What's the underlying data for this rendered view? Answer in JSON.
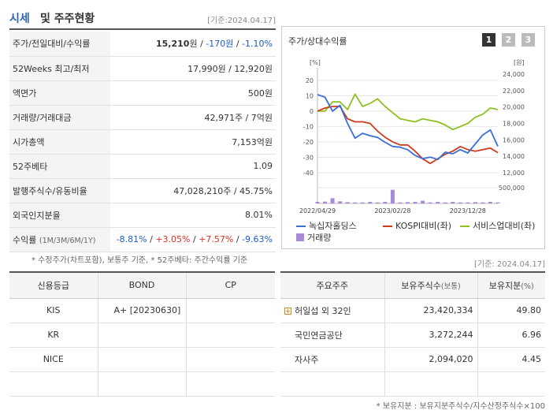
{
  "header": {
    "title_main": "시세",
    "title_rest": "및 주주현황",
    "date": "[기준:2024.04.17]"
  },
  "price_rows": [
    {
      "label": "주가/전일대비/수익률",
      "price": "15,210",
      "unit": "원",
      "sep": " / ",
      "change": "-170원",
      "rate": "-1.10%"
    },
    {
      "label": "52Weeks 최고/최저",
      "value": "17,990원 / 12,920원"
    },
    {
      "label": "액면가",
      "value": "500원"
    },
    {
      "label": "거래량/거래대금",
      "value": "42,971주 / 7억원"
    },
    {
      "label": "시가총액",
      "value": "7,153억원"
    },
    {
      "label": "52주베타",
      "value": "1.09"
    },
    {
      "label": "발행주식수/유동비율",
      "value": "47,028,210주 / 45.75%"
    },
    {
      "label": "외국인지분율",
      "value": "8.01%"
    },
    {
      "label": "수익률",
      "sublabel": "(1M/3M/6M/1Y)",
      "r1": "-8.81%",
      "r2": "+3.05%",
      "r3": "+7.57%",
      "r4": "-9.63%"
    }
  ],
  "note1": "* 수정주가(차트포함), 보통주 기준, * 52주베타: 주간수익률 기준",
  "chart_panel": {
    "title": "주가/상대수익률",
    "pages": [
      "1",
      "2",
      "3"
    ],
    "left_unit": "[%]",
    "right_unit": "[원]",
    "volume_tick": "500,000",
    "x_labels": [
      "2022/04/29",
      "2023/02/28",
      "2023/12/28"
    ],
    "legend": {
      "stock": "녹십자홀딩스",
      "kospi": "KOSPI대비(좌)",
      "service": "서비스업대비(좌)",
      "volume": "거래량"
    },
    "colors": {
      "stock": "#3a6fd6",
      "kospi": "#d23a1c",
      "service": "#8fc021",
      "volume": "#a78bd8"
    }
  },
  "chart_data": {
    "type": "line",
    "x": [
      "2022/04/29",
      "2022/05/29",
      "2022/06/29",
      "2022/07/29",
      "2022/08/29",
      "2022/09/29",
      "2022/10/29",
      "2022/11/29",
      "2022/12/29",
      "2023/01/29",
      "2023/02/28",
      "2023/03/28",
      "2023/04/28",
      "2023/05/28",
      "2023/06/28",
      "2023/07/28",
      "2023/08/28",
      "2023/09/28",
      "2023/10/28",
      "2023/11/28",
      "2023/12/28",
      "2024/01/28",
      "2024/02/28",
      "2024/03/28",
      "2024/04/17"
    ],
    "left_axis": {
      "ticks": [
        20,
        10,
        0,
        -10,
        -20,
        -30,
        -40
      ],
      "ylim": [
        -40,
        24
      ]
    },
    "right_axis": {
      "ticks": [
        "24,000",
        "22,000",
        "20,000",
        "18,000",
        "16,000",
        "14,000",
        "12,000"
      ],
      "ylim": [
        12000,
        24000
      ]
    },
    "series": [
      {
        "name": "녹십자홀딩스",
        "axis": "right",
        "values": [
          21500,
          21200,
          19500,
          20200,
          18000,
          16200,
          16800,
          16500,
          16300,
          15700,
          15200,
          15100,
          14800,
          14100,
          13700,
          13900,
          13600,
          14500,
          14300,
          14800,
          14400,
          15500,
          16600,
          17200,
          15210
        ]
      },
      {
        "name": "KOSPI대비(좌)",
        "axis": "left",
        "values": [
          0,
          2,
          3,
          3,
          -5,
          -7,
          -7,
          -8,
          -13,
          -17,
          -20,
          -22,
          -22,
          -26,
          -31,
          -34,
          -31,
          -28,
          -26,
          -23,
          -25,
          -26,
          -25,
          -24,
          -27
        ]
      },
      {
        "name": "서비스업대비(좌)",
        "axis": "left",
        "values": [
          0,
          0,
          6,
          6,
          1,
          11,
          3,
          5,
          8,
          3,
          -1,
          -5,
          -6,
          -7,
          -5,
          -6,
          -7,
          -9,
          -12,
          -10,
          -8,
          -4,
          -2,
          2,
          1
        ]
      }
    ],
    "volume": [
      60000,
      70000,
      200000,
      80000,
      50000,
      40000,
      40000,
      60000,
      40000,
      60000,
      520000,
      40000,
      50000,
      60000,
      100000,
      40000,
      60000,
      40000,
      60000,
      40000,
      40000,
      50000,
      40000,
      60000,
      40000
    ],
    "volume_ylim": [
      0,
      600000
    ]
  },
  "bottom_date": "[기준: 2024.04.17]",
  "credit": {
    "headers": [
      "신용등급",
      "BOND",
      "CP"
    ],
    "rows": [
      {
        "agency": "KIS",
        "bond": "A+   [20230630]",
        "cp": ""
      },
      {
        "agency": "KR",
        "bond": "",
        "cp": ""
      },
      {
        "agency": "NICE",
        "bond": "",
        "cp": ""
      },
      {
        "agency": "",
        "bond": "",
        "cp": ""
      }
    ]
  },
  "holders": {
    "headers": {
      "holder": "주요주주",
      "shares": "보유주식수",
      "shares_unit": "(보통)",
      "ratio": "보유지분",
      "ratio_unit": "(%)"
    },
    "rows": [
      {
        "name": "허일섭 외 32인",
        "shares": "23,420,334",
        "ratio": "49.80",
        "expand": true
      },
      {
        "name": "국민연금공단",
        "shares": "3,272,244",
        "ratio": "6.96",
        "expand": false
      },
      {
        "name": "자사주",
        "shares": "2,094,020",
        "ratio": "4.45",
        "expand": false
      }
    ]
  },
  "note2": "* 보유지분 : 보유지분주식수/지수산정주식수×100"
}
